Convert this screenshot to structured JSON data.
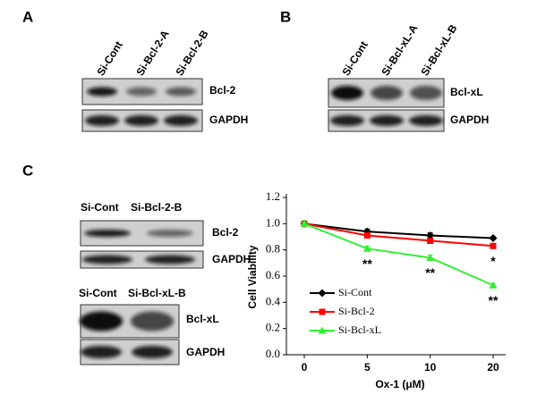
{
  "panels": {
    "A": {
      "label": "A",
      "lanes": [
        "Si-Cont",
        "Si-Bcl-2-A",
        "Si-Bcl-2-B"
      ],
      "bands": [
        "Bcl-2",
        "GAPDH"
      ]
    },
    "B": {
      "label": "B",
      "lanes": [
        "Si-Cont",
        "Si-Bcl-xL-A",
        "Si-Bcl-xL-B"
      ],
      "bands": [
        "Bcl-xL",
        "GAPDH"
      ]
    },
    "C": {
      "label": "C",
      "blots": [
        {
          "lanes": [
            "Si-Cont",
            "Si-Bcl-2-B"
          ],
          "bands": [
            "Bcl-2",
            "GAPDH"
          ]
        },
        {
          "lanes": [
            "Si-Cont",
            "Si-Bcl-xL-B"
          ],
          "bands": [
            "Bcl-xL",
            "GAPDH"
          ]
        }
      ]
    }
  },
  "chart_data": {
    "type": "line",
    "x_label": "Ox-1 (μM)",
    "y_label": "Cell Viability",
    "categories": [
      "0",
      "5",
      "10",
      "20"
    ],
    "series": [
      {
        "name": "Si-Cont",
        "color": "#000000",
        "marker": "diamond",
        "values": [
          1.0,
          0.94,
          0.91,
          0.89
        ],
        "errors": [
          0.01,
          0.02,
          0.02,
          0.01
        ]
      },
      {
        "name": "Si-Bcl-2",
        "color": "#ff0000",
        "marker": "square",
        "values": [
          1.0,
          0.91,
          0.87,
          0.83
        ],
        "errors": [
          0.01,
          0.02,
          0.02,
          0.01
        ]
      },
      {
        "name": "Si-Bcl-xL",
        "color": "#33ee33",
        "marker": "triangle",
        "values": [
          1.0,
          0.81,
          0.74,
          0.53
        ],
        "errors": [
          0.01,
          0.02,
          0.02,
          0.01
        ]
      }
    ],
    "annotations": [
      {
        "text": "**",
        "x": "5",
        "series": "Si-Bcl-xL"
      },
      {
        "text": "**",
        "x": "10",
        "series": "Si-Bcl-xL"
      },
      {
        "text": "**",
        "x": "20",
        "series": "Si-Bcl-xL"
      },
      {
        "text": "*",
        "x": "20",
        "series": "Si-Bcl-2"
      }
    ],
    "ylim": [
      0,
      1.2
    ],
    "yticks": [
      {
        "value": 0,
        "label": "0.0"
      },
      0.2,
      0.4,
      0.6,
      0.8,
      {
        "value": 1,
        "label": "1.0"
      },
      1.2
    ],
    "legend": "lower left",
    "grid": false
  }
}
